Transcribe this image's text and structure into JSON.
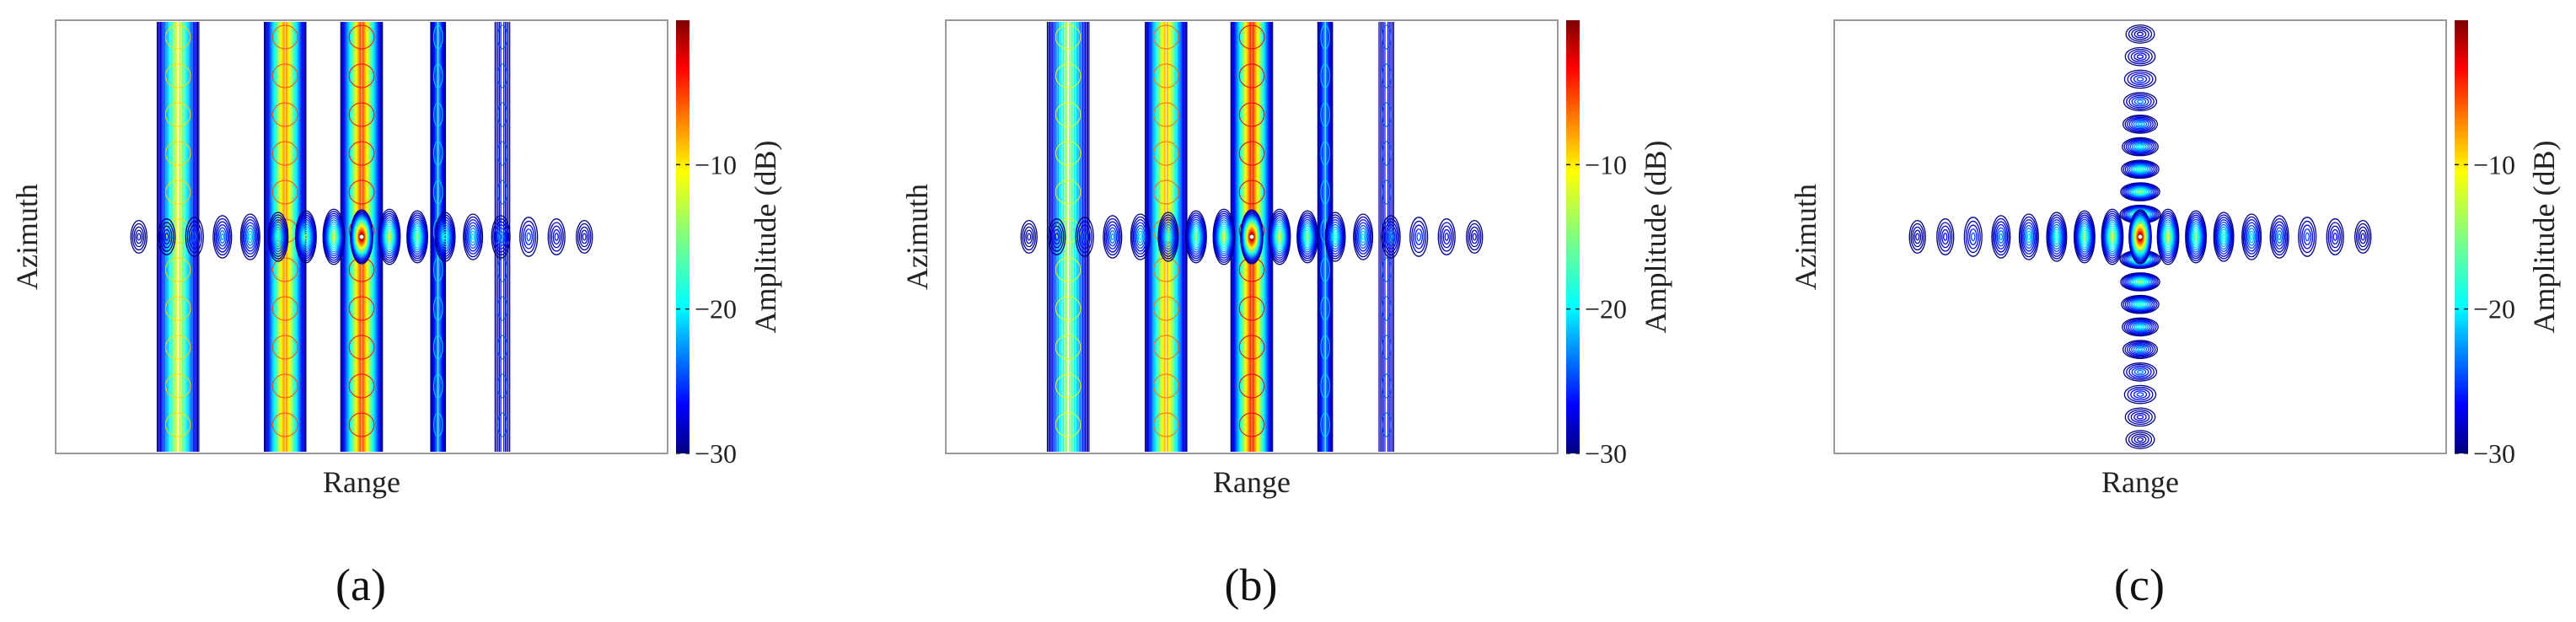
{
  "chart_data": [
    {
      "type": "heatmap",
      "panel_caption": "(a)",
      "xlabel": "Range",
      "ylabel": "Azimuth",
      "colorbar": {
        "label": "Amplitude (dB)",
        "ticks": [
          -10,
          -20,
          -30
        ],
        "range": [
          -30,
          0
        ],
        "colormap": "jet"
      },
      "pattern": "stripes",
      "peak": {
        "x": 0.0,
        "y": 0.0,
        "amplitude_db": 0
      },
      "range_sidelobes": {
        "count_each_side": 8,
        "peak_db": -13,
        "falloff_db_per_lobe": 2.2
      },
      "vertical_stripes": [
        {
          "x": -0.3,
          "level_db": -12
        },
        {
          "x": -0.125,
          "level_db": -8
        },
        {
          "x": 0.0,
          "level_db": -6
        },
        {
          "x": 0.125,
          "level_db": -22
        },
        {
          "x": 0.23,
          "level_db": -26
        }
      ],
      "azimuth_sidelobes": {
        "count_each_side": 0
      },
      "grid": false,
      "ticks_shown": false
    },
    {
      "type": "heatmap",
      "panel_caption": "(b)",
      "xlabel": "Range",
      "ylabel": "Azimuth",
      "colorbar": {
        "label": "Amplitude (dB)",
        "ticks": [
          -10,
          -20,
          -30
        ],
        "range": [
          -30,
          0
        ],
        "colormap": "jet"
      },
      "pattern": "stripes",
      "peak": {
        "x": 0.0,
        "y": 0.0,
        "amplitude_db": 0
      },
      "range_sidelobes": {
        "count_each_side": 8,
        "peak_db": -13,
        "falloff_db_per_lobe": 2.2
      },
      "vertical_stripes": [
        {
          "x": -0.3,
          "level_db": -14
        },
        {
          "x": -0.14,
          "level_db": -9
        },
        {
          "x": 0.0,
          "level_db": -5
        },
        {
          "x": 0.12,
          "level_db": -22
        },
        {
          "x": 0.22,
          "level_db": -26
        }
      ],
      "azimuth_sidelobes": {
        "count_each_side": 0
      },
      "grid": false,
      "ticks_shown": false
    },
    {
      "type": "heatmap",
      "panel_caption": "(c)",
      "xlabel": "Range",
      "ylabel": "Azimuth",
      "colorbar": {
        "label": "Amplitude (dB)",
        "ticks": [
          -10,
          -20,
          -30
        ],
        "range": [
          -30,
          0
        ],
        "colormap": "jet"
      },
      "pattern": "cross",
      "peak": {
        "x": 0.0,
        "y": 0.0,
        "amplitude_db": 0
      },
      "range_sidelobes": {
        "count_each_side": 8,
        "peak_db": -13,
        "falloff_db_per_lobe": 2.2
      },
      "vertical_stripes": [],
      "azimuth_sidelobes": {
        "count_each_side": 9,
        "peak_db": -13,
        "falloff_db_per_lobe": 1.9
      },
      "grid": false,
      "ticks_shown": false
    }
  ]
}
